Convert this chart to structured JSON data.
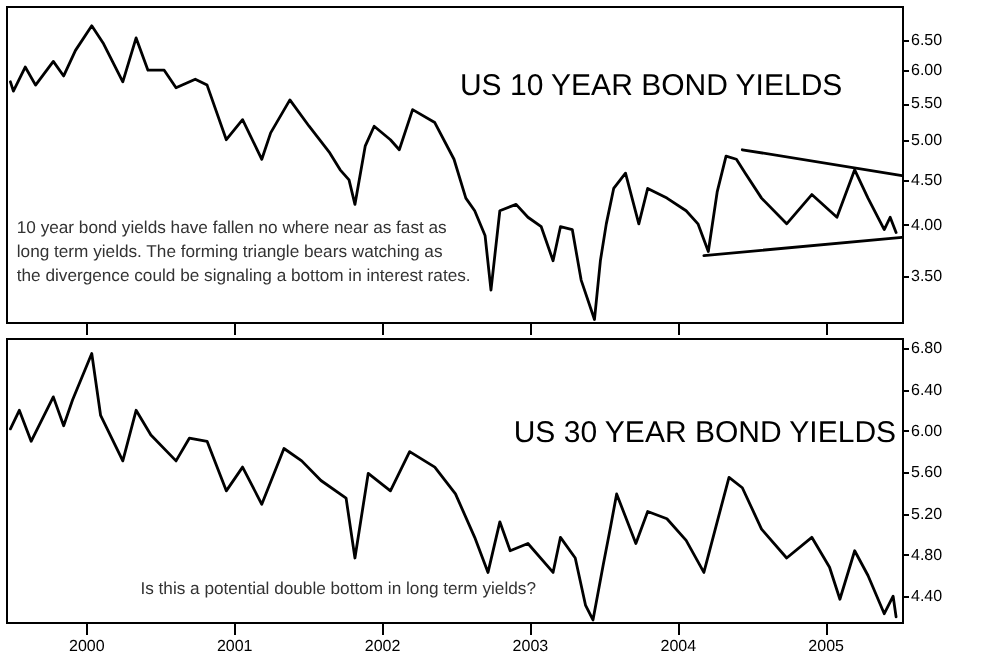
{
  "chart_data": [
    {
      "type": "line",
      "title": "US 10 YEAR BOND YIELDS",
      "log": true,
      "tick_labels": "y",
      "annotations": [
        "10 year bond yields have fallen no where near as fast as",
        "long term yields. The forming triangle bears watching as",
        "the divergence could be signaling a bottom in interest rates."
      ],
      "xlim": [
        1999.46,
        2005.52
      ],
      "xticks": [
        2000,
        2001,
        2002,
        2003,
        2004,
        2005
      ],
      "ylim": [
        3.1,
        7.1
      ],
      "yticks": [
        {
          "value": 3.5,
          "label": "3.50"
        },
        {
          "value": 4,
          "label": "4.00"
        },
        {
          "value": 4.5,
          "label": "4.50"
        },
        {
          "value": 5,
          "label": "5.00"
        },
        {
          "value": 5.5,
          "label": "5.50"
        },
        {
          "value": 6,
          "label": "6.00"
        },
        {
          "value": 6.5,
          "label": "6.50"
        }
      ],
      "series": [
        {
          "color": "#000000",
          "x": [
            1999.49,
            1999.51,
            1999.59,
            1999.66,
            1999.78,
            1999.85,
            1999.93,
            2000.04,
            2000.12,
            2000.25,
            2000.34,
            2000.42,
            2000.53,
            2000.61,
            2000.74,
            2000.82,
            2000.95,
            2001.06,
            2001.19,
            2001.25,
            2001.38,
            2001.51,
            2001.65,
            2001.72,
            2001.78,
            2001.82,
            2001.89,
            2001.95,
            2002.06,
            2002.12,
            2002.21,
            2002.36,
            2002.49,
            2002.57,
            2002.63,
            2002.7,
            2002.74,
            2002.8,
            2002.91,
            2002.99,
            2003.08,
            2003.16,
            2003.21,
            2003.29,
            2003.35,
            2003.44,
            2003.48,
            2003.52,
            2003.57,
            2003.65,
            2003.74,
            2003.8,
            2003.93,
            2004.06,
            2004.14,
            2004.21,
            2004.27,
            2004.33,
            2004.4,
            2004.46,
            2004.57,
            2004.74,
            2004.91,
            2005.08,
            2005.2,
            2005.29,
            2005.4,
            2005.44,
            2005.48
          ],
          "values": [
            5.82,
            5.68,
            6.05,
            5.77,
            6.14,
            5.91,
            6.32,
            6.74,
            6.43,
            5.82,
            6.53,
            6.0,
            6.0,
            5.73,
            5.86,
            5.77,
            5.0,
            5.27,
            4.75,
            5.09,
            5.55,
            5.18,
            4.83,
            4.62,
            4.5,
            4.22,
            4.92,
            5.18,
            5.0,
            4.87,
            5.41,
            5.23,
            4.75,
            4.29,
            4.15,
            3.89,
            3.37,
            4.15,
            4.22,
            4.08,
            3.98,
            3.64,
            3.98,
            3.95,
            3.46,
            3.12,
            3.64,
            4.01,
            4.4,
            4.58,
            4.01,
            4.4,
            4.29,
            4.15,
            4.01,
            3.73,
            4.36,
            4.79,
            4.75,
            4.58,
            4.29,
            4.01,
            4.33,
            4.08,
            4.62,
            4.29,
            3.95,
            4.08,
            3.92
          ]
        },
        {
          "type": "line",
          "color": "#000000",
          "x": [
            2004.44,
            2005.52
          ],
          "values": [
            4.87,
            4.55
          ]
        },
        {
          "type": "line",
          "color": "#000000",
          "x": [
            2004.18,
            2005.52
          ],
          "values": [
            3.69,
            3.87
          ]
        }
      ]
    },
    {
      "type": "line",
      "title": "US 30 YEAR BOND YIELDS",
      "annotations": [
        "Is this a potential double bottom in long term yields?"
      ],
      "xlim": [
        1999.46,
        2005.52
      ],
      "xticks": [
        2000,
        2001,
        2002,
        2003,
        2004,
        2005
      ],
      "ylim": [
        4.15,
        6.9
      ],
      "yticks": [
        {
          "value": 4.4,
          "label": "4.40"
        },
        {
          "value": 4.8,
          "label": "4.80"
        },
        {
          "value": 5.2,
          "label": "5.20"
        },
        {
          "value": 5.6,
          "label": "5.60"
        },
        {
          "value": 6,
          "label": "6.00"
        },
        {
          "value": 6.4,
          "label": "6.40"
        },
        {
          "value": 6.8,
          "label": "6.80"
        }
      ],
      "series": [
        {
          "color": "#000000",
          "x": [
            1999.49,
            1999.55,
            1999.63,
            1999.78,
            1999.85,
            1999.91,
            2000.04,
            2000.1,
            2000.25,
            2000.34,
            2000.44,
            2000.61,
            2000.7,
            2000.82,
            2000.95,
            2001.06,
            2001.19,
            2001.34,
            2001.46,
            2001.59,
            2001.76,
            2001.82,
            2001.91,
            2002.06,
            2002.19,
            2002.36,
            2002.5,
            2002.63,
            2002.72,
            2002.8,
            2002.87,
            2002.99,
            2003.16,
            2003.21,
            2003.31,
            2003.38,
            2003.43,
            2003.5,
            2003.55,
            2003.59,
            2003.72,
            2003.8,
            2003.93,
            2004.06,
            2004.18,
            2004.27,
            2004.35,
            2004.44,
            2004.57,
            2004.74,
            2004.91,
            2005.03,
            2005.1,
            2005.2,
            2005.29,
            2005.4,
            2005.46,
            2005.48
          ],
          "values": [
            6.02,
            6.2,
            5.9,
            6.33,
            6.05,
            6.3,
            6.75,
            6.15,
            5.71,
            6.2,
            5.96,
            5.71,
            5.93,
            5.9,
            5.42,
            5.65,
            5.29,
            5.83,
            5.71,
            5.52,
            5.35,
            4.77,
            5.59,
            5.42,
            5.8,
            5.65,
            5.39,
            4.97,
            4.63,
            5.12,
            4.84,
            4.91,
            4.63,
            4.97,
            4.77,
            4.31,
            4.17,
            4.71,
            5.08,
            5.39,
            4.91,
            5.22,
            5.15,
            4.94,
            4.63,
            5.12,
            5.55,
            5.45,
            5.05,
            4.77,
            4.97,
            4.68,
            4.37,
            4.84,
            4.6,
            4.23,
            4.4,
            4.2
          ]
        }
      ]
    }
  ]
}
